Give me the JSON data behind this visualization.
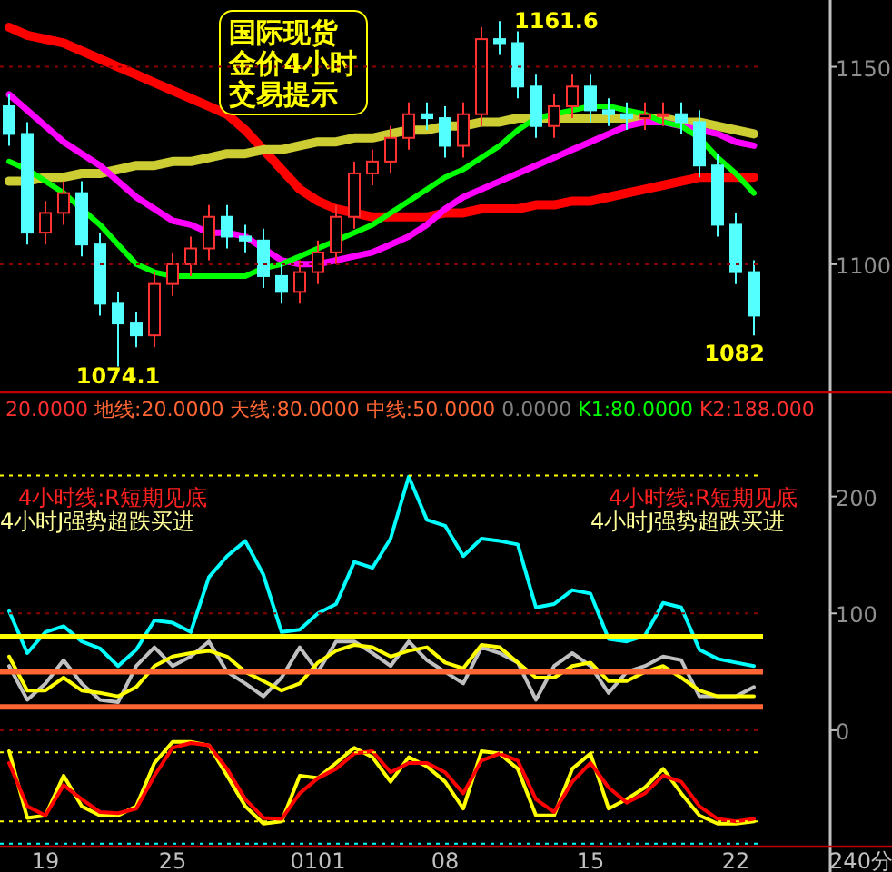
{
  "chart_data": [
    {
      "type": "candlestick",
      "title": "国际现货金价4小时交易提示",
      "categories": [
        null,
        null,
        null,
        null,
        null,
        null,
        null,
        null,
        null,
        null,
        null,
        null,
        null,
        null,
        null,
        null,
        null,
        null,
        null,
        null,
        null,
        null,
        null,
        null,
        null,
        null,
        null,
        null,
        null,
        null,
        null,
        null,
        null,
        null,
        null,
        null,
        null,
        null,
        null,
        null,
        null,
        null
      ],
      "ohlc": [
        [
          1140,
          1143,
          1130,
          1133
        ],
        [
          1133,
          1136,
          1105,
          1108
        ],
        [
          1108,
          1116,
          1105,
          1113
        ],
        [
          1113,
          1121,
          1110,
          1118
        ],
        [
          1118,
          1121,
          1102,
          1105
        ],
        [
          1105,
          1108,
          1087,
          1090
        ],
        [
          1090,
          1093,
          1074.1,
          1085
        ],
        [
          1085,
          1088,
          1079,
          1082
        ],
        [
          1082,
          1098,
          1079,
          1095
        ],
        [
          1095,
          1103,
          1092,
          1100
        ],
        [
          1100,
          1107,
          1097,
          1104
        ],
        [
          1104,
          1115,
          1101,
          1112
        ],
        [
          1112,
          1115,
          1104,
          1107
        ],
        [
          1107,
          1110,
          1103,
          1106
        ],
        [
          1106,
          1109,
          1094,
          1097
        ],
        [
          1097,
          1100,
          1090,
          1093
        ],
        [
          1093,
          1101,
          1090,
          1098
        ],
        [
          1098,
          1106,
          1095,
          1103
        ],
        [
          1103,
          1115,
          1100,
          1112
        ],
        [
          1112,
          1126,
          1109,
          1123
        ],
        [
          1123,
          1129,
          1120,
          1126
        ],
        [
          1126,
          1135,
          1123,
          1132
        ],
        [
          1132,
          1141,
          1129,
          1138
        ],
        [
          1138,
          1141,
          1134,
          1137
        ],
        [
          1137,
          1140,
          1127,
          1130
        ],
        [
          1130,
          1141,
          1127,
          1138
        ],
        [
          1138,
          1160,
          1135,
          1157
        ],
        [
          1157,
          1161.6,
          1153,
          1156
        ],
        [
          1156,
          1159,
          1142,
          1145
        ],
        [
          1145,
          1148,
          1132,
          1135
        ],
        [
          1135,
          1143,
          1132,
          1140
        ],
        [
          1140,
          1148,
          1137,
          1145
        ],
        [
          1145,
          1148,
          1136,
          1139
        ],
        [
          1139,
          1142,
          1135,
          1138
        ],
        [
          1138,
          1141,
          1134,
          1137
        ],
        [
          1137,
          1141,
          1134,
          1138
        ],
        [
          1138,
          1141,
          1135,
          1138
        ],
        [
          1138,
          1141,
          1133,
          1136
        ],
        [
          1136,
          1139,
          1122,
          1125
        ],
        [
          1125,
          1128,
          1107,
          1110
        ],
        [
          1110,
          1113,
          1095,
          1098
        ],
        [
          1098,
          1101,
          1082,
          1087
        ]
      ],
      "series": [
        {
          "type": "line",
          "color": "#ff0000",
          "values": [
            1160,
            1158,
            1157,
            1156,
            1154,
            1152,
            1150,
            1148,
            1146,
            1144,
            1142,
            1140,
            1138,
            1134,
            1129,
            1124,
            1119,
            1116,
            1114,
            1113,
            1112,
            1112,
            1112,
            1112,
            1113,
            1113,
            1114,
            1114,
            1114,
            1115,
            1115,
            1116,
            1116,
            1117,
            1118,
            1119,
            1120,
            1121,
            1122,
            1122,
            1122,
            1122
          ]
        },
        {
          "type": "line",
          "color": "#cccc33",
          "values": [
            1121,
            1121,
            1122,
            1122,
            1123,
            1123,
            1124,
            1125,
            1125,
            1126,
            1126,
            1127,
            1128,
            1128,
            1129,
            1129,
            1130,
            1131,
            1131,
            1132,
            1132,
            1133,
            1134,
            1134,
            1135,
            1135,
            1136,
            1136,
            1137,
            1137,
            1137,
            1137,
            1137,
            1137,
            1137,
            1137,
            1137,
            1136,
            1136,
            1135,
            1134,
            1133
          ]
        },
        {
          "type": "line",
          "color": "#ff00ff",
          "values": [
            1143,
            1139,
            1135,
            1131,
            1128,
            1125,
            1121,
            1117,
            1114,
            1111,
            1110,
            1108,
            1108,
            1107,
            1104,
            1101,
            1100,
            1100,
            1101,
            1102,
            1103,
            1105,
            1107,
            1110,
            1114,
            1117,
            1119,
            1121,
            1123,
            1125,
            1127,
            1129,
            1131,
            1133,
            1135,
            1136,
            1136,
            1135,
            1134,
            1133,
            1131,
            1130
          ]
        },
        {
          "type": "line",
          "color": "#00ff00",
          "values": [
            1126,
            1124,
            1121,
            1118,
            1114,
            1110,
            1105,
            1100,
            1098,
            1097,
            1097,
            1097,
            1097,
            1097,
            1099,
            1100,
            1102,
            1104,
            1106,
            1108,
            1110,
            1113,
            1116,
            1119,
            1122,
            1124,
            1127,
            1130,
            1134,
            1137,
            1138,
            1139,
            1140,
            1140,
            1139,
            1138,
            1136,
            1135,
            1132,
            1127,
            1123,
            1118
          ]
        }
      ],
      "ylim": [
        1068,
        1166
      ],
      "yticks": [
        1100,
        1150
      ],
      "tick_labels": "y",
      "ref_lines": [
        {
          "axis": "y",
          "value": 1150,
          "color": "#8b0000",
          "line_style": "dotted"
        },
        {
          "axis": "y",
          "value": 1100,
          "color": "#8b0000",
          "line_style": "dotted"
        }
      ],
      "annotations": [
        "1161.6",
        "1074.1",
        "1082"
      ]
    },
    {
      "type": "line",
      "categories": [
        null,
        null,
        "19",
        null,
        null,
        null,
        null,
        null,
        null,
        "25",
        null,
        null,
        null,
        null,
        null,
        null,
        null,
        "0101",
        null,
        null,
        null,
        null,
        null,
        null,
        "08",
        null,
        null,
        null,
        null,
        null,
        null,
        null,
        "15",
        null,
        null,
        null,
        null,
        null,
        null,
        null,
        "22",
        null
      ],
      "series": [
        {
          "color": "#00ffff",
          "values": [
            102,
            66,
            84,
            89,
            76,
            70,
            55,
            69,
            94,
            92,
            84,
            131,
            149,
            162,
            133,
            84,
            86,
            100,
            108,
            144,
            139,
            164,
            217,
            180,
            175,
            149,
            164,
            162,
            159,
            105,
            108,
            120,
            117,
            78,
            76,
            81,
            109,
            105,
            69,
            61,
            58,
            55
          ]
        },
        {
          "color": "#c0c0c0",
          "values": [
            55,
            26,
            40,
            60,
            40,
            26,
            24,
            55,
            71,
            55,
            63,
            76,
            50,
            40,
            29,
            45,
            71,
            50,
            76,
            76,
            66,
            55,
            76,
            60,
            50,
            40,
            71,
            66,
            58,
            26,
            55,
            66,
            55,
            32,
            50,
            55,
            63,
            60,
            29,
            29,
            29,
            37
          ]
        },
        {
          "color": "#ffff00",
          "values": [
            63,
            34,
            34,
            45,
            34,
            32,
            29,
            37,
            55,
            63,
            66,
            68,
            63,
            50,
            42,
            34,
            40,
            58,
            68,
            73,
            71,
            63,
            68,
            71,
            58,
            53,
            73,
            71,
            58,
            45,
            45,
            55,
            58,
            42,
            42,
            50,
            55,
            45,
            34,
            29,
            29,
            29
          ]
        },
        {
          "color": "#ffff00",
          "values": [
            -18,
            -75,
            -73,
            -39,
            -65,
            -73,
            -73,
            -65,
            -28,
            -10,
            -10,
            -13,
            -39,
            -65,
            -80,
            -78,
            -39,
            -41,
            -28,
            -15,
            -23,
            -44,
            -23,
            -31,
            -44,
            -67,
            -18,
            -20,
            -33,
            -73,
            -73,
            -33,
            -20,
            -67,
            -59,
            -49,
            -33,
            -54,
            -73,
            -80,
            -80,
            -78
          ]
        },
        {
          "color": "#ff0000",
          "values": [
            -28,
            -65,
            -73,
            -47,
            -59,
            -70,
            -71,
            -67,
            -39,
            -15,
            -11,
            -13,
            -33,
            -59,
            -75,
            -76,
            -54,
            -41,
            -33,
            -20,
            -18,
            -36,
            -28,
            -28,
            -36,
            -54,
            -26,
            -20,
            -26,
            -59,
            -70,
            -44,
            -28,
            -49,
            -62,
            -54,
            -39,
            -44,
            -65,
            -76,
            -78,
            -76
          ]
        }
      ],
      "ylim": [
        -98,
        286
      ],
      "yticks": [
        0,
        100,
        200
      ],
      "ref_lines": [
        {
          "axis": "y",
          "value": 80,
          "color": "#ffff00",
          "line_style": "solid"
        },
        {
          "axis": "y",
          "value": 50,
          "color": "#ff6633",
          "line_style": "solid"
        },
        {
          "axis": "y",
          "value": 20,
          "color": "#ff6633",
          "line_style": "solid"
        },
        {
          "axis": "y",
          "value": 218,
          "color": "#ffff00",
          "line_style": "dotted"
        },
        {
          "axis": "y",
          "value": 100,
          "color": "#8b0000",
          "line_style": "dotted"
        },
        {
          "axis": "y",
          "value": 0,
          "color": "#8b0000",
          "line_style": "dotted"
        },
        {
          "axis": "y",
          "value": -19,
          "color": "#ffff00",
          "line_style": "dotted"
        },
        {
          "axis": "y",
          "value": -78,
          "color": "#ffff00",
          "line_style": "dotted"
        },
        {
          "axis": "y",
          "value": -97,
          "color": "#00ffff",
          "line_style": "dotted"
        }
      ],
      "annotations": [
        "20.0000",
        "地线:20.0000",
        "天线:80.0000",
        "中线:50.0000",
        "0.0000",
        "K1:80.0000",
        "K2:188.000",
        "4小时线:R短期见底",
        "4小时J强势超跌买进",
        "4小时线:R短期见底",
        "4小时J强势超跌买进",
        "240分"
      ]
    }
  ]
}
